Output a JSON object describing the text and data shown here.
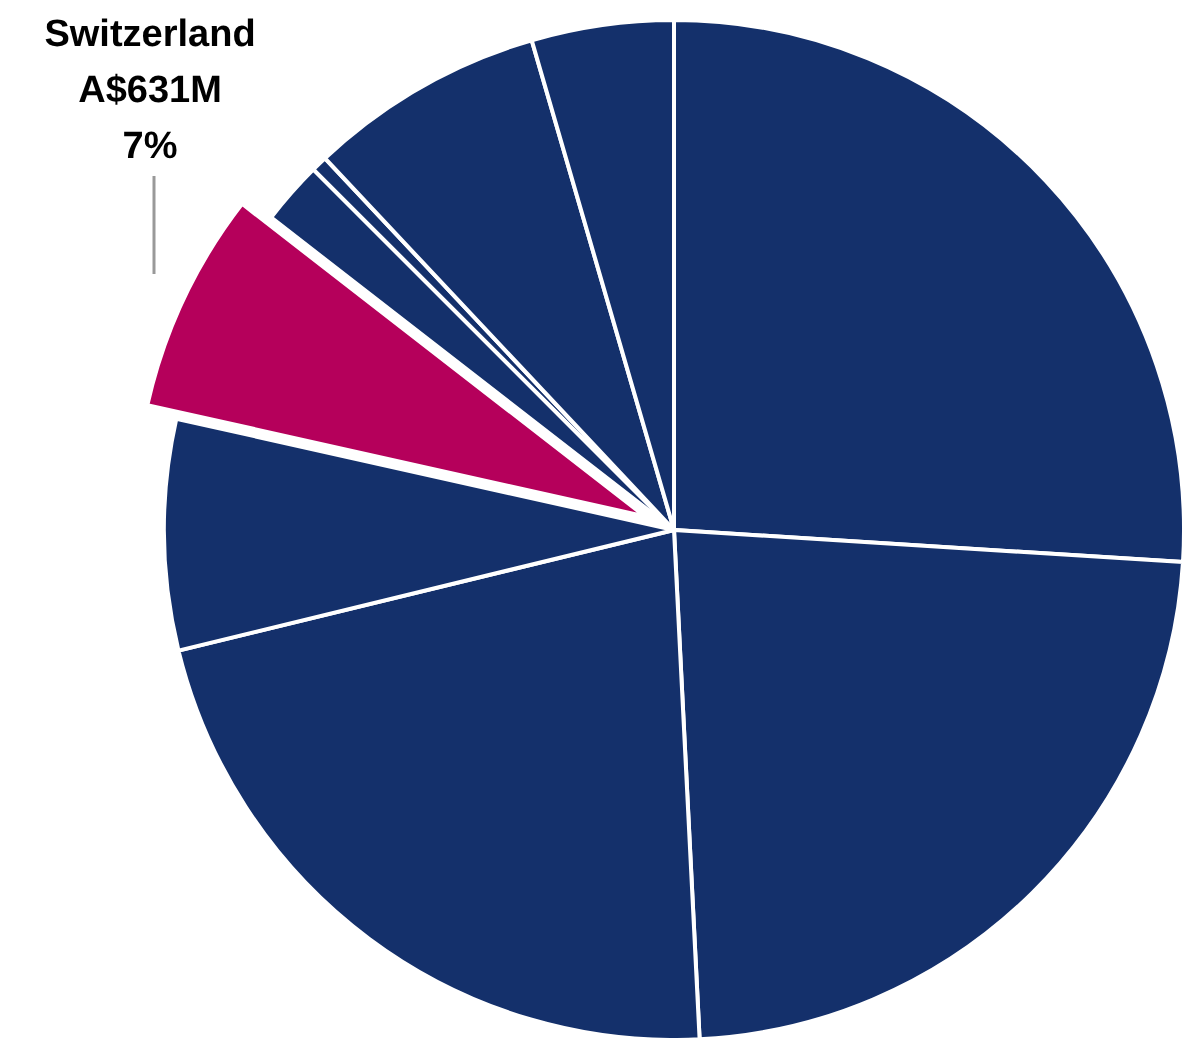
{
  "chart_data": {
    "type": "pie",
    "categories": [
      null,
      null,
      null,
      null,
      "Switzerland",
      null,
      null,
      null,
      null
    ],
    "values": [
      26,
      23.2,
      22,
      7.3,
      7,
      2,
      0.5,
      7.5,
      4.5
    ],
    "colors": [
      "#14306b",
      "#14306b",
      "#14306b",
      "#14306b",
      "#b5005b",
      "#14306b",
      "#14306b",
      "#14306b",
      "#14306b"
    ],
    "value_labels": [
      null,
      null,
      null,
      null,
      "A$631M\n7%",
      null,
      null,
      null,
      null
    ]
  }
}
